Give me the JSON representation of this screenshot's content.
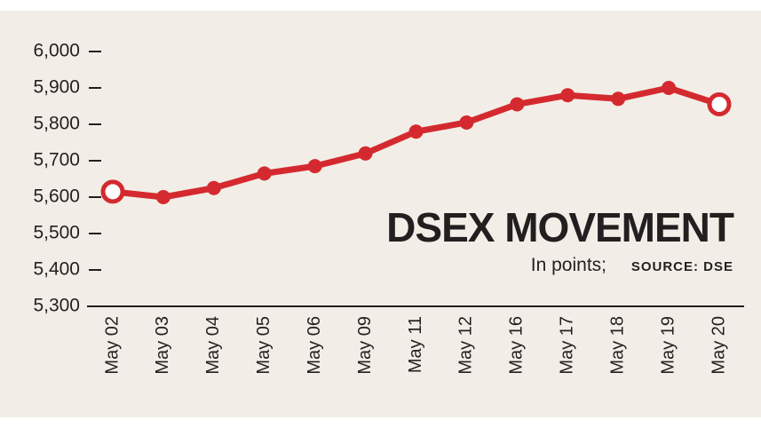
{
  "chart_data": {
    "type": "line",
    "title": "DSEX MOVEMENT",
    "subtitle": "In points;",
    "source": "SOURCE: DSE",
    "categories": [
      "May 02",
      "May 03",
      "May 04",
      "May 05",
      "May 06",
      "May 09",
      "May 11",
      "May 12",
      "May 16",
      "May 17",
      "May 18",
      "May 19",
      "May 20"
    ],
    "values": [
      5615,
      5600,
      5625,
      5665,
      5685,
      5720,
      5780,
      5805,
      5855,
      5880,
      5870,
      5900,
      5855
    ],
    "color": "#d42a2f",
    "ylim": [
      5300,
      6000
    ],
    "yticks": [
      {
        "value": 5300,
        "label": "5,300"
      },
      {
        "value": 5400,
        "label": "5,400"
      },
      {
        "value": 5500,
        "label": "5,500"
      },
      {
        "value": 5600,
        "label": "5,600"
      },
      {
        "value": 5700,
        "label": "5,700"
      },
      {
        "value": 5800,
        "label": "5,800"
      },
      {
        "value": 5900,
        "label": "5,900"
      },
      {
        "value": 6000,
        "label": "6,000"
      }
    ]
  }
}
